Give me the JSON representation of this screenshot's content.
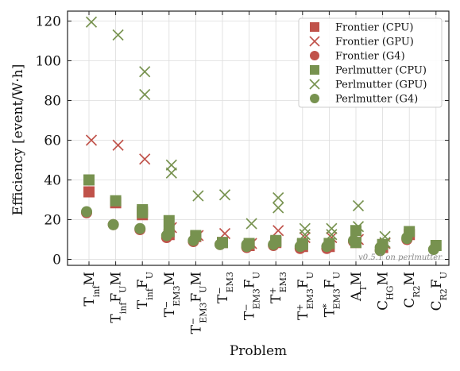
{
  "chart_data": {
    "type": "scatter",
    "xlabel": "Problem",
    "ylabel": "Efficiency [event/W·h]",
    "ylim": [
      -3,
      125
    ],
    "yticks": [
      0,
      20,
      40,
      60,
      80,
      100,
      120
    ],
    "grid": true,
    "legend_position": "top-right",
    "annotation": "v0.5.1 on perlmutter",
    "categories": [
      {
        "base": "T",
        "sub": "inf",
        "tail": "M"
      },
      {
        "base": "T",
        "sub": "inf",
        "tail": "F",
        "tailsub": "U",
        "tail2": "M"
      },
      {
        "base": "T",
        "sub": "inf",
        "tail": "F",
        "tailsub": "U"
      },
      {
        "base": "T",
        "sup": "−",
        "sub": "EM3",
        "tail": "M"
      },
      {
        "base": "T",
        "sup": "−",
        "sub": "EM3",
        "tail": "F",
        "tailsub": "U",
        "tail2": "M"
      },
      {
        "base": "T",
        "sup": "−",
        "sub": "EM3"
      },
      {
        "base": "T",
        "sup": "−",
        "sub": "EM3",
        "tail": "F",
        "tailsub": "U"
      },
      {
        "base": "T",
        "sup": "+",
        "sub": "EM3"
      },
      {
        "base": "T",
        "sup": "+",
        "sub": "EM3",
        "tail": "F",
        "tailsub": "U"
      },
      {
        "base": "T",
        "sup": "*",
        "sub": "EM3",
        "tail": "F",
        "tailsub": "U"
      },
      {
        "base": "A",
        "sub": "T",
        "tail": "M"
      },
      {
        "base": "C",
        "sub": "HG",
        "tail": "M"
      },
      {
        "base": "C",
        "sub": "R2",
        "tail": "M"
      },
      {
        "base": "C",
        "sub": "R2",
        "tail": "F",
        "tailsub": "U"
      }
    ],
    "colors": {
      "frontier": "#c0524a",
      "perlmutter": "#77924f"
    },
    "series": [
      {
        "name": "Frontier (CPU)",
        "marker": "square",
        "system": "frontier",
        "points": [
          [
            0,
            34
          ],
          [
            1,
            28.5
          ],
          [
            2,
            24
          ],
          [
            2,
            22.5
          ],
          [
            3,
            12.5
          ],
          [
            4,
            11.5
          ],
          [
            5,
            8.5
          ],
          [
            6,
            7
          ],
          [
            7,
            8.5
          ],
          [
            8,
            6.5
          ],
          [
            9,
            6.5
          ],
          [
            10,
            8.5
          ],
          [
            11,
            6
          ],
          [
            12,
            12.5
          ]
        ]
      },
      {
        "name": "Frontier (GPU)",
        "marker": "x",
        "system": "frontier",
        "points": [
          [
            0,
            60
          ],
          [
            1,
            57.5
          ],
          [
            2,
            50.5
          ],
          [
            3,
            16
          ],
          [
            4,
            12
          ],
          [
            5,
            13
          ],
          [
            6,
            8
          ],
          [
            7,
            14.5
          ],
          [
            8,
            11
          ],
          [
            9,
            11
          ],
          [
            10,
            10
          ],
          [
            11,
            8
          ]
        ]
      },
      {
        "name": "Frontier (G4)",
        "marker": "circle",
        "system": "frontier",
        "points": [
          [
            0,
            23.5
          ],
          [
            1,
            17.5
          ],
          [
            2,
            15
          ],
          [
            3,
            11
          ],
          [
            4,
            9
          ],
          [
            5,
            7.5
          ],
          [
            6,
            6
          ],
          [
            7,
            7
          ],
          [
            8,
            5.5
          ],
          [
            9,
            5.5
          ],
          [
            10,
            9
          ],
          [
            11,
            4.5
          ],
          [
            12,
            10
          ]
        ]
      },
      {
        "name": "Perlmutter (CPU)",
        "marker": "square",
        "system": "perlmutter",
        "points": [
          [
            0,
            40
          ],
          [
            1,
            29.5
          ],
          [
            2,
            25
          ],
          [
            2,
            23.5
          ],
          [
            3,
            19.5
          ],
          [
            3,
            14
          ],
          [
            4,
            12
          ],
          [
            5,
            8.5
          ],
          [
            6,
            8
          ],
          [
            7,
            9.5
          ],
          [
            7,
            9
          ],
          [
            8,
            8
          ],
          [
            8,
            7.5
          ],
          [
            9,
            8
          ],
          [
            10,
            14.5
          ],
          [
            10,
            8.5
          ],
          [
            11,
            7.5
          ],
          [
            12,
            14
          ],
          [
            13,
            7
          ]
        ]
      },
      {
        "name": "Perlmutter (GPU)",
        "marker": "x",
        "system": "perlmutter",
        "points": [
          [
            0,
            119.5
          ],
          [
            1,
            113
          ],
          [
            2,
            94.5
          ],
          [
            2,
            83
          ],
          [
            3,
            47.5
          ],
          [
            3,
            43.5
          ],
          [
            4,
            32
          ],
          [
            5,
            32.5
          ],
          [
            6,
            18
          ],
          [
            7,
            26
          ],
          [
            7,
            31
          ],
          [
            8,
            15.5
          ],
          [
            8,
            12.5
          ],
          [
            9,
            15.5
          ],
          [
            9,
            12.5
          ],
          [
            10,
            27
          ],
          [
            10,
            16.5
          ],
          [
            11,
            11.5
          ],
          [
            11,
            8.5
          ]
        ]
      },
      {
        "name": "Perlmutter (G4)",
        "marker": "circle",
        "system": "perlmutter",
        "points": [
          [
            0,
            24
          ],
          [
            1,
            17.5
          ],
          [
            2,
            15.5
          ],
          [
            3,
            12
          ],
          [
            4,
            9.5
          ],
          [
            5,
            7.5
          ],
          [
            6,
            6.5
          ],
          [
            6,
            7.5
          ],
          [
            7,
            7.5
          ],
          [
            8,
            6.5
          ],
          [
            9,
            6.5
          ],
          [
            10,
            9.5
          ],
          [
            11,
            4.5
          ],
          [
            11,
            6
          ],
          [
            12,
            10.5
          ],
          [
            12,
            11
          ],
          [
            13,
            5
          ]
        ]
      }
    ]
  }
}
